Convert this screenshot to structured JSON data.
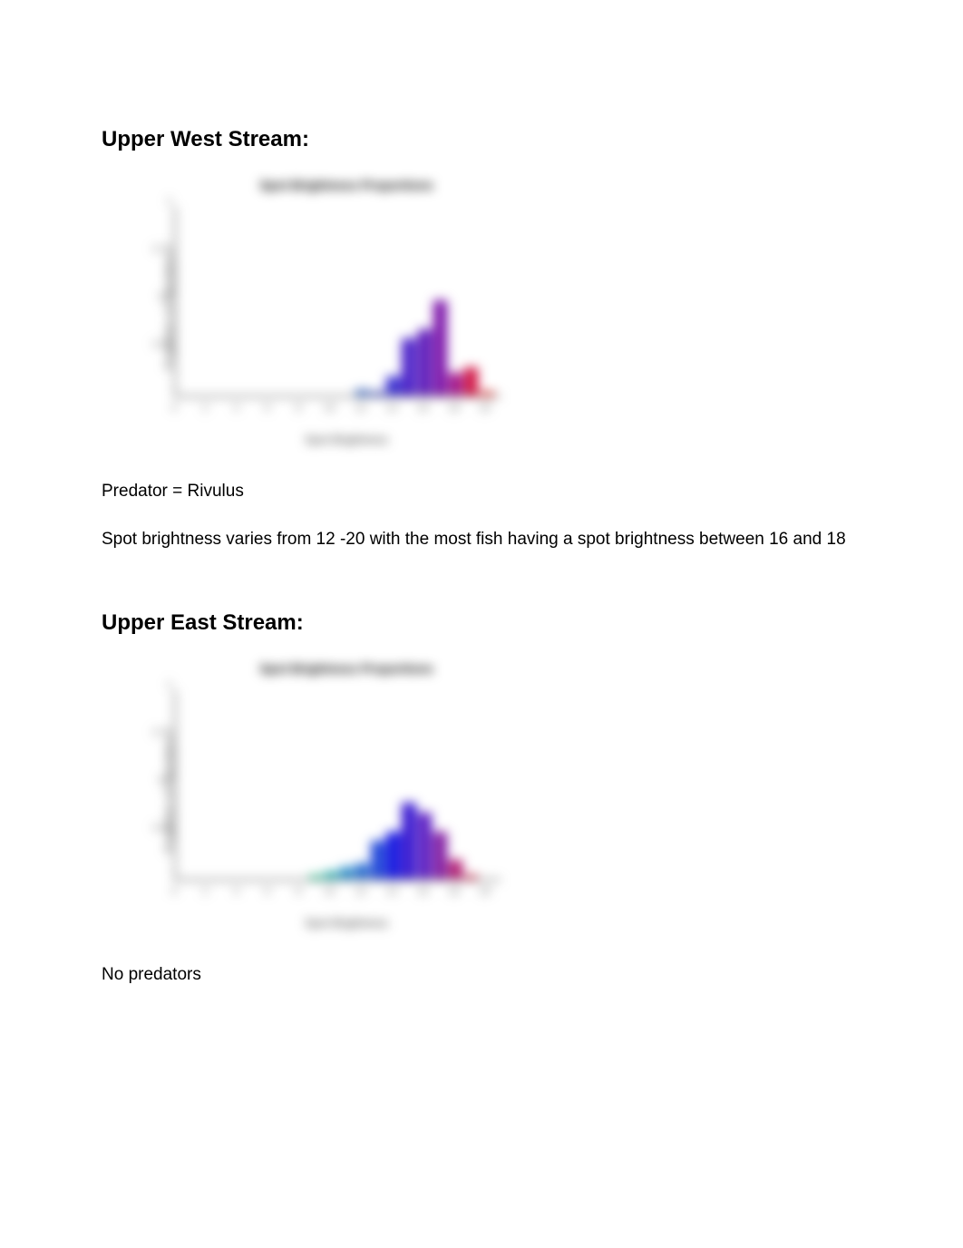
{
  "sections": [
    {
      "heading": "Upper West Stream:",
      "predator_text": "Predator = Rivulus",
      "description": "Spot brightness varies from 12 -20 with the most fish having a spot brightness between 16 and 18",
      "chart": {
        "type": "bar",
        "title": "Spot Brightness Proportions",
        "xlabel": "Spot Brightness",
        "ylabel": "Proportion of Population",
        "ylim": [
          0,
          1
        ],
        "yticks": [
          0,
          0.25,
          0.5,
          0.75,
          1
        ],
        "ytick_labels": [
          "",
          "0.25",
          "0.5",
          "0.75",
          "1"
        ],
        "xticks": [
          0,
          2,
          4,
          6,
          8,
          10,
          12,
          14,
          16,
          18,
          20
        ],
        "background_color": "#ffffff",
        "axis_color": "#666666",
        "bar_width": 0.9,
        "bars": [
          {
            "x": 12,
            "value": 0.03,
            "color": "#2a5abf"
          },
          {
            "x": 13,
            "value": 0.02,
            "color": "#3040c0"
          },
          {
            "x": 14,
            "value": 0.1,
            "color": "#3a2fd0"
          },
          {
            "x": 15,
            "value": 0.3,
            "color": "#4a20c8"
          },
          {
            "x": 16,
            "value": 0.35,
            "color": "#5a15b8"
          },
          {
            "x": 17,
            "value": 0.5,
            "color": "#7a10a8"
          },
          {
            "x": 18,
            "value": 0.12,
            "color": "#a01088"
          },
          {
            "x": 19,
            "value": 0.15,
            "color": "#d01040"
          },
          {
            "x": 20,
            "value": 0.02,
            "color": "#e81818"
          }
        ]
      }
    },
    {
      "heading": "Upper East Stream:",
      "predator_text": "No predators",
      "description": "",
      "chart": {
        "type": "bar",
        "title": "Spot Brightness Proportions",
        "xlabel": "Spot Brightness",
        "ylabel": "Proportion of Population",
        "ylim": [
          0,
          1
        ],
        "yticks": [
          0,
          0.25,
          0.5,
          0.75,
          1
        ],
        "ytick_labels": [
          "",
          "0.25",
          "0.5",
          "0.75",
          "1"
        ],
        "xticks": [
          0,
          2,
          4,
          6,
          8,
          10,
          12,
          14,
          16,
          18,
          20
        ],
        "background_color": "#ffffff",
        "axis_color": "#666666",
        "bar_width": 0.9,
        "bars": [
          {
            "x": 9,
            "value": 0.02,
            "color": "#18c088"
          },
          {
            "x": 10,
            "value": 0.04,
            "color": "#18a8a8"
          },
          {
            "x": 11,
            "value": 0.06,
            "color": "#2088c8"
          },
          {
            "x": 12,
            "value": 0.08,
            "color": "#2068d0"
          },
          {
            "x": 13,
            "value": 0.2,
            "color": "#2048d8"
          },
          {
            "x": 14,
            "value": 0.25,
            "color": "#1818e0"
          },
          {
            "x": 15,
            "value": 0.4,
            "color": "#3818d0"
          },
          {
            "x": 16,
            "value": 0.35,
            "color": "#5818c0"
          },
          {
            "x": 17,
            "value": 0.25,
            "color": "#8018a0"
          },
          {
            "x": 18,
            "value": 0.1,
            "color": "#b01870"
          },
          {
            "x": 19,
            "value": 0.02,
            "color": "#d01840"
          }
        ]
      }
    }
  ]
}
